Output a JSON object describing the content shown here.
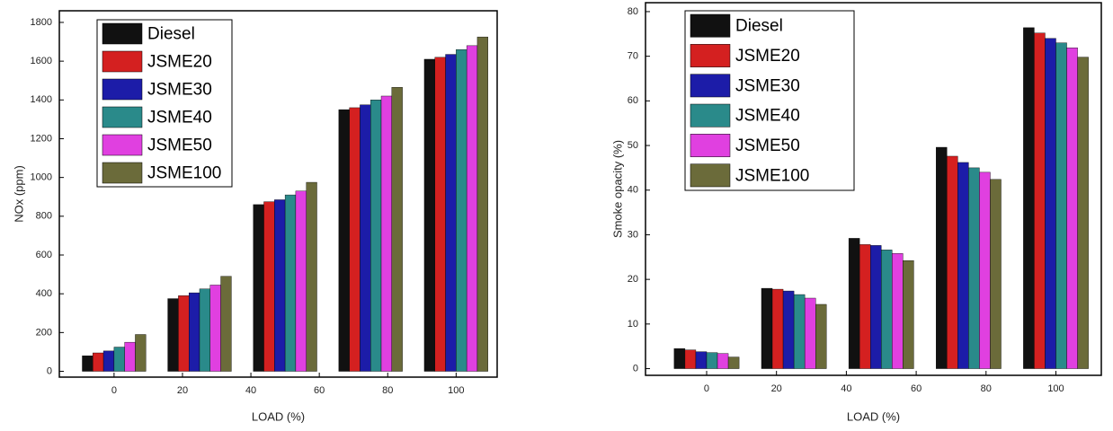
{
  "chart_data": [
    {
      "type": "bar",
      "y_label": "NOx (ppm)",
      "x_label": "LOAD (%)",
      "x": [
        0,
        25,
        50,
        75,
        100
      ],
      "xlim": [
        -16,
        112
      ],
      "xticks": [
        0,
        20,
        40,
        60,
        80,
        100
      ],
      "ylim": [
        -30,
        1860
      ],
      "yticks": [
        0,
        200,
        400,
        600,
        800,
        1000,
        1200,
        1400,
        1600,
        1800
      ],
      "series": [
        {
          "name": "Diesel",
          "color": "#111111",
          "values": [
            80,
            375,
            860,
            1350,
            1610
          ]
        },
        {
          "name": "JSME20",
          "color": "#d42020",
          "values": [
            95,
            390,
            875,
            1360,
            1620
          ]
        },
        {
          "name": "JSME30",
          "color": "#1c1ca8",
          "values": [
            105,
            405,
            885,
            1375,
            1635
          ]
        },
        {
          "name": "JSME40",
          "color": "#2a8a8a",
          "values": [
            125,
            425,
            910,
            1400,
            1660
          ]
        },
        {
          "name": "JSME50",
          "color": "#e040e0",
          "values": [
            150,
            445,
            930,
            1420,
            1680
          ]
        },
        {
          "name": "JSME100",
          "color": "#6b6b3a",
          "values": [
            190,
            490,
            975,
            1465,
            1725
          ]
        }
      ]
    },
    {
      "type": "bar",
      "y_label": "Smoke opacity (%)",
      "x_label": "LOAD (%)",
      "x": [
        0,
        25,
        50,
        75,
        100
      ],
      "xlim": [
        -17.5,
        113
      ],
      "xticks": [
        0,
        20,
        40,
        60,
        80,
        100
      ],
      "ylim": [
        -1.5,
        82
      ],
      "yticks": [
        0,
        10,
        20,
        30,
        40,
        50,
        60,
        70,
        80
      ],
      "series": [
        {
          "name": "Diesel",
          "color": "#111111",
          "values": [
            4.5,
            18,
            29.2,
            49.6,
            76.4
          ]
        },
        {
          "name": "JSME20",
          "color": "#d42020",
          "values": [
            4.2,
            17.8,
            27.8,
            47.6,
            75.2
          ]
        },
        {
          "name": "JSME30",
          "color": "#1c1ca8",
          "values": [
            3.8,
            17.4,
            27.6,
            46.2,
            74
          ]
        },
        {
          "name": "JSME40",
          "color": "#2a8a8a",
          "values": [
            3.6,
            16.6,
            26.6,
            45,
            73
          ]
        },
        {
          "name": "JSME50",
          "color": "#e040e0",
          "values": [
            3.4,
            15.8,
            25.8,
            44,
            71.9
          ]
        },
        {
          "name": "JSME100",
          "color": "#6b6b3a",
          "values": [
            2.6,
            14.4,
            24.2,
            42.4,
            69.8
          ]
        }
      ]
    }
  ]
}
